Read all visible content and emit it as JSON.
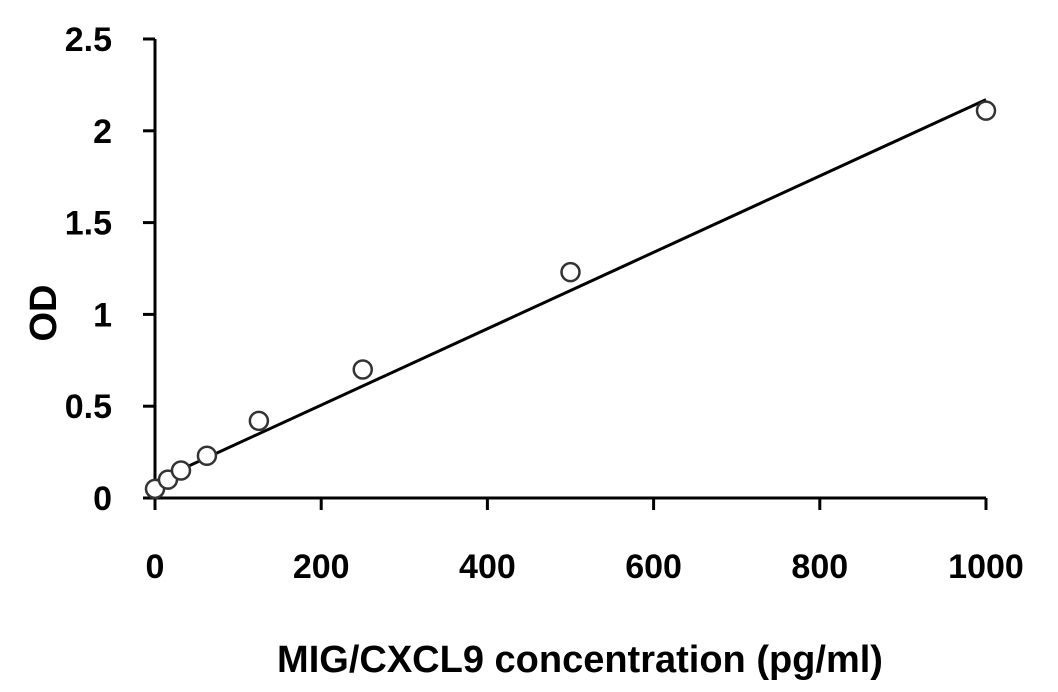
{
  "chart_data": {
    "type": "scatter",
    "title": "",
    "xlabel": "MIG/CXCL9 concentration (pg/ml)",
    "ylabel": "OD",
    "xlim": [
      0,
      1000
    ],
    "ylim": [
      0,
      2.5
    ],
    "x_ticks": [
      0,
      200,
      400,
      600,
      800,
      1000
    ],
    "y_ticks": [
      0,
      0.5,
      1,
      1.5,
      2,
      2.5
    ],
    "x_tick_labels": [
      "0",
      "200",
      "400",
      "600",
      "800",
      "1000"
    ],
    "y_tick_labels": [
      "0",
      "0.5",
      "1",
      "1.5",
      "2",
      "2.5"
    ],
    "grid": false,
    "legend": "none",
    "series": [
      {
        "marker": "open-circle",
        "x": [
          0,
          15.6,
          31.25,
          62.5,
          125,
          250,
          500,
          1000
        ],
        "y": [
          0.05,
          0.1,
          0.15,
          0.23,
          0.42,
          0.7,
          1.23,
          2.11
        ]
      }
    ],
    "trendline": {
      "type": "linear",
      "x": [
        0,
        1000
      ],
      "y": [
        0.09,
        2.17
      ]
    },
    "colors": {
      "axis": "#000000",
      "marker_stroke": "#333333",
      "marker_fill": "#ffffff",
      "trendline": "#000000"
    }
  }
}
